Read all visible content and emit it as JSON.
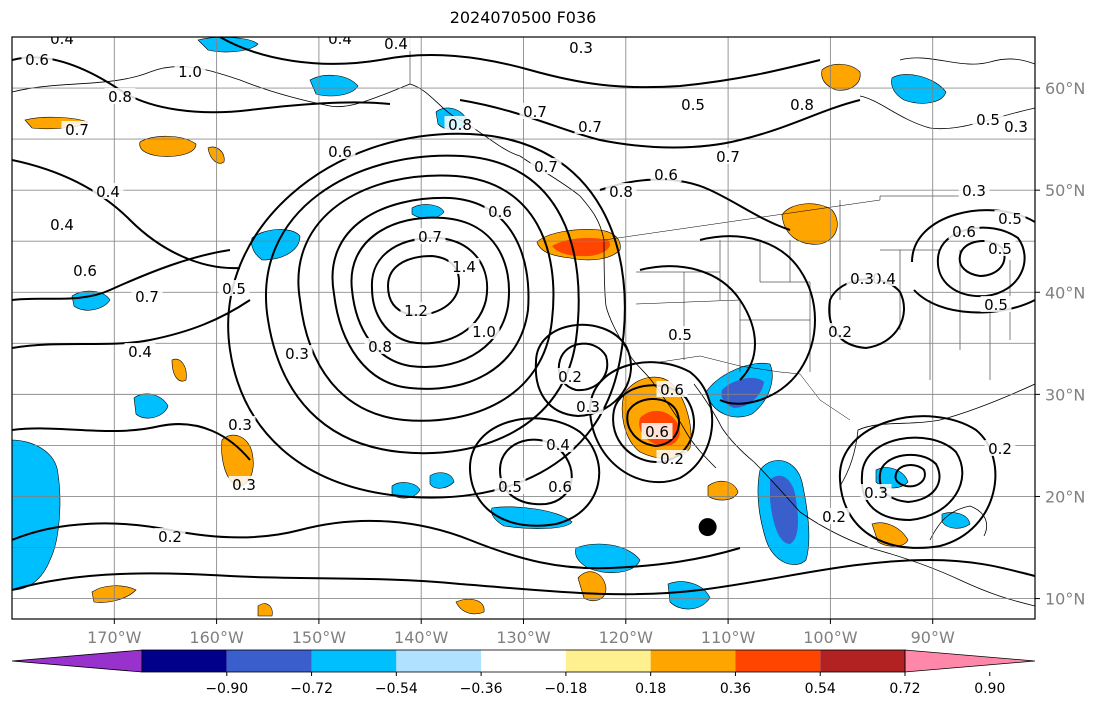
{
  "title": "2024070500 F036",
  "map": {
    "lon_range": [
      -180,
      -80
    ],
    "lat_range": [
      8,
      65
    ],
    "gridlines": true,
    "coastlines": true,
    "state_borders": true,
    "lon_ticks": [
      {
        "value": -170,
        "label": "170°W"
      },
      {
        "value": -160,
        "label": "160°W"
      },
      {
        "value": -150,
        "label": "150°W"
      },
      {
        "value": -140,
        "label": "140°W"
      },
      {
        "value": -130,
        "label": "130°W"
      },
      {
        "value": -120,
        "label": "120°W"
      },
      {
        "value": -110,
        "label": "110°W"
      },
      {
        "value": -100,
        "label": "100°W"
      },
      {
        "value": -90,
        "label": "90°W"
      }
    ],
    "lat_ticks": [
      {
        "value": 60,
        "label": "60°N"
      },
      {
        "value": 50,
        "label": "50°N"
      },
      {
        "value": 40,
        "label": "40°N"
      },
      {
        "value": 30,
        "label": "30°N"
      },
      {
        "value": 20,
        "label": "20°N"
      },
      {
        "value": 10,
        "label": "10°N"
      }
    ],
    "marker": {
      "lon": -112,
      "lat": 17,
      "symbol": "filled-circle",
      "color": "#000000"
    }
  },
  "colorbar": {
    "orientation": "horizontal",
    "extend": "both",
    "colors": [
      "#9932cc",
      "#00008b",
      "#3a5fcd",
      "#00bfff",
      "#b0e2ff",
      "#ffffff",
      "#fff08f",
      "#ffa500",
      "#ff4500",
      "#b22222",
      "#ff88aa"
    ],
    "levels": [
      "−0.90",
      "−0.72",
      "−0.54",
      "−0.36",
      "−0.18",
      "0.18",
      "0.36",
      "0.54",
      "0.72",
      "0.90"
    ]
  },
  "contour_labels": [
    "0.6",
    "0.4",
    "0.4",
    "0.4",
    "0.3",
    "0.8",
    "1.0",
    "0.7",
    "0.6",
    "0.8",
    "0.7",
    "0.5",
    "0.7",
    "0.5",
    "0.7",
    "0.6",
    "0.8",
    "0.7",
    "0.6",
    "0.4",
    "0.4",
    "0.3",
    "0.5",
    "0.4",
    "0.6",
    "0.7",
    "1.4",
    "1.2",
    "0.5",
    "0.6",
    "0.5",
    "0.7",
    "0.4",
    "0.3",
    "0.8",
    "1.0",
    "0.5",
    "0.2",
    "0.3",
    "0.2",
    "0.4",
    "0.6",
    "0.5",
    "0.6",
    "0.6",
    "0.2",
    "0.2",
    "0.3",
    "0.2",
    "0.3",
    "0.2",
    "0.3",
    "0.3",
    "0.3",
    "0.5",
    "0.8"
  ],
  "shaded_regions": [
    {
      "sign": "positive",
      "max_level": "0.72",
      "lon": -124,
      "lat": 43
    },
    {
      "sign": "positive",
      "max_level": "0.54",
      "lon": -117,
      "lat": 26
    },
    {
      "sign": "positive",
      "max_level": "0.54",
      "lon": -102,
      "lat": 47
    },
    {
      "sign": "negative",
      "max_level": "−0.72",
      "lon": -105,
      "lat": 19
    },
    {
      "sign": "negative",
      "max_level": "−0.54",
      "lon": -108,
      "lat": 30
    }
  ]
}
